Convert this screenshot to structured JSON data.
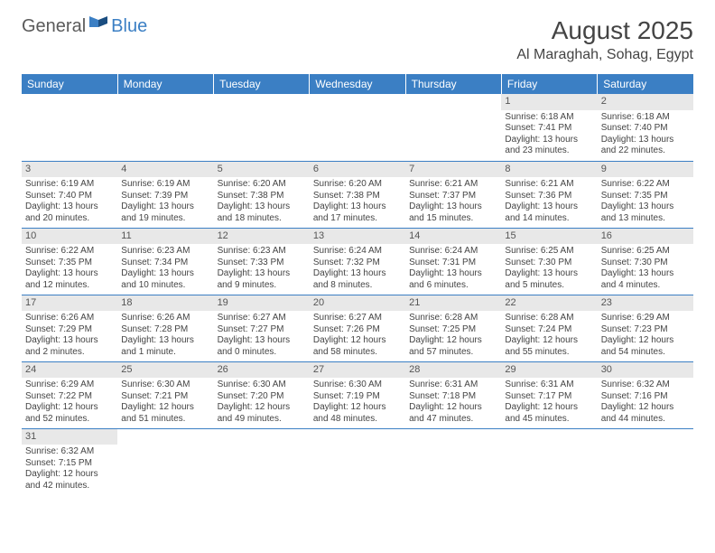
{
  "logo": {
    "part1": "General",
    "part2": "Blue"
  },
  "title": "August 2025",
  "location": "Al Maraghah, Sohag, Egypt",
  "colors": {
    "header_bg": "#3b7fc4",
    "header_text": "#ffffff",
    "daynum_bg": "#e8e8e8",
    "grid_line": "#3b7fc4",
    "text": "#444444",
    "logo_gray": "#5a5a5a",
    "logo_blue": "#3b7fc4"
  },
  "weekdays": [
    "Sunday",
    "Monday",
    "Tuesday",
    "Wednesday",
    "Thursday",
    "Friday",
    "Saturday"
  ],
  "first_weekday_index": 5,
  "days": [
    {
      "n": 1,
      "sunrise": "6:18 AM",
      "sunset": "7:41 PM",
      "daylight": "13 hours and 23 minutes."
    },
    {
      "n": 2,
      "sunrise": "6:18 AM",
      "sunset": "7:40 PM",
      "daylight": "13 hours and 22 minutes."
    },
    {
      "n": 3,
      "sunrise": "6:19 AM",
      "sunset": "7:40 PM",
      "daylight": "13 hours and 20 minutes."
    },
    {
      "n": 4,
      "sunrise": "6:19 AM",
      "sunset": "7:39 PM",
      "daylight": "13 hours and 19 minutes."
    },
    {
      "n": 5,
      "sunrise": "6:20 AM",
      "sunset": "7:38 PM",
      "daylight": "13 hours and 18 minutes."
    },
    {
      "n": 6,
      "sunrise": "6:20 AM",
      "sunset": "7:38 PM",
      "daylight": "13 hours and 17 minutes."
    },
    {
      "n": 7,
      "sunrise": "6:21 AM",
      "sunset": "7:37 PM",
      "daylight": "13 hours and 15 minutes."
    },
    {
      "n": 8,
      "sunrise": "6:21 AM",
      "sunset": "7:36 PM",
      "daylight": "13 hours and 14 minutes."
    },
    {
      "n": 9,
      "sunrise": "6:22 AM",
      "sunset": "7:35 PM",
      "daylight": "13 hours and 13 minutes."
    },
    {
      "n": 10,
      "sunrise": "6:22 AM",
      "sunset": "7:35 PM",
      "daylight": "13 hours and 12 minutes."
    },
    {
      "n": 11,
      "sunrise": "6:23 AM",
      "sunset": "7:34 PM",
      "daylight": "13 hours and 10 minutes."
    },
    {
      "n": 12,
      "sunrise": "6:23 AM",
      "sunset": "7:33 PM",
      "daylight": "13 hours and 9 minutes."
    },
    {
      "n": 13,
      "sunrise": "6:24 AM",
      "sunset": "7:32 PM",
      "daylight": "13 hours and 8 minutes."
    },
    {
      "n": 14,
      "sunrise": "6:24 AM",
      "sunset": "7:31 PM",
      "daylight": "13 hours and 6 minutes."
    },
    {
      "n": 15,
      "sunrise": "6:25 AM",
      "sunset": "7:30 PM",
      "daylight": "13 hours and 5 minutes."
    },
    {
      "n": 16,
      "sunrise": "6:25 AM",
      "sunset": "7:30 PM",
      "daylight": "13 hours and 4 minutes."
    },
    {
      "n": 17,
      "sunrise": "6:26 AM",
      "sunset": "7:29 PM",
      "daylight": "13 hours and 2 minutes."
    },
    {
      "n": 18,
      "sunrise": "6:26 AM",
      "sunset": "7:28 PM",
      "daylight": "13 hours and 1 minute."
    },
    {
      "n": 19,
      "sunrise": "6:27 AM",
      "sunset": "7:27 PM",
      "daylight": "13 hours and 0 minutes."
    },
    {
      "n": 20,
      "sunrise": "6:27 AM",
      "sunset": "7:26 PM",
      "daylight": "12 hours and 58 minutes."
    },
    {
      "n": 21,
      "sunrise": "6:28 AM",
      "sunset": "7:25 PM",
      "daylight": "12 hours and 57 minutes."
    },
    {
      "n": 22,
      "sunrise": "6:28 AM",
      "sunset": "7:24 PM",
      "daylight": "12 hours and 55 minutes."
    },
    {
      "n": 23,
      "sunrise": "6:29 AM",
      "sunset": "7:23 PM",
      "daylight": "12 hours and 54 minutes."
    },
    {
      "n": 24,
      "sunrise": "6:29 AM",
      "sunset": "7:22 PM",
      "daylight": "12 hours and 52 minutes."
    },
    {
      "n": 25,
      "sunrise": "6:30 AM",
      "sunset": "7:21 PM",
      "daylight": "12 hours and 51 minutes."
    },
    {
      "n": 26,
      "sunrise": "6:30 AM",
      "sunset": "7:20 PM",
      "daylight": "12 hours and 49 minutes."
    },
    {
      "n": 27,
      "sunrise": "6:30 AM",
      "sunset": "7:19 PM",
      "daylight": "12 hours and 48 minutes."
    },
    {
      "n": 28,
      "sunrise": "6:31 AM",
      "sunset": "7:18 PM",
      "daylight": "12 hours and 47 minutes."
    },
    {
      "n": 29,
      "sunrise": "6:31 AM",
      "sunset": "7:17 PM",
      "daylight": "12 hours and 45 minutes."
    },
    {
      "n": 30,
      "sunrise": "6:32 AM",
      "sunset": "7:16 PM",
      "daylight": "12 hours and 44 minutes."
    },
    {
      "n": 31,
      "sunrise": "6:32 AM",
      "sunset": "7:15 PM",
      "daylight": "12 hours and 42 minutes."
    }
  ]
}
